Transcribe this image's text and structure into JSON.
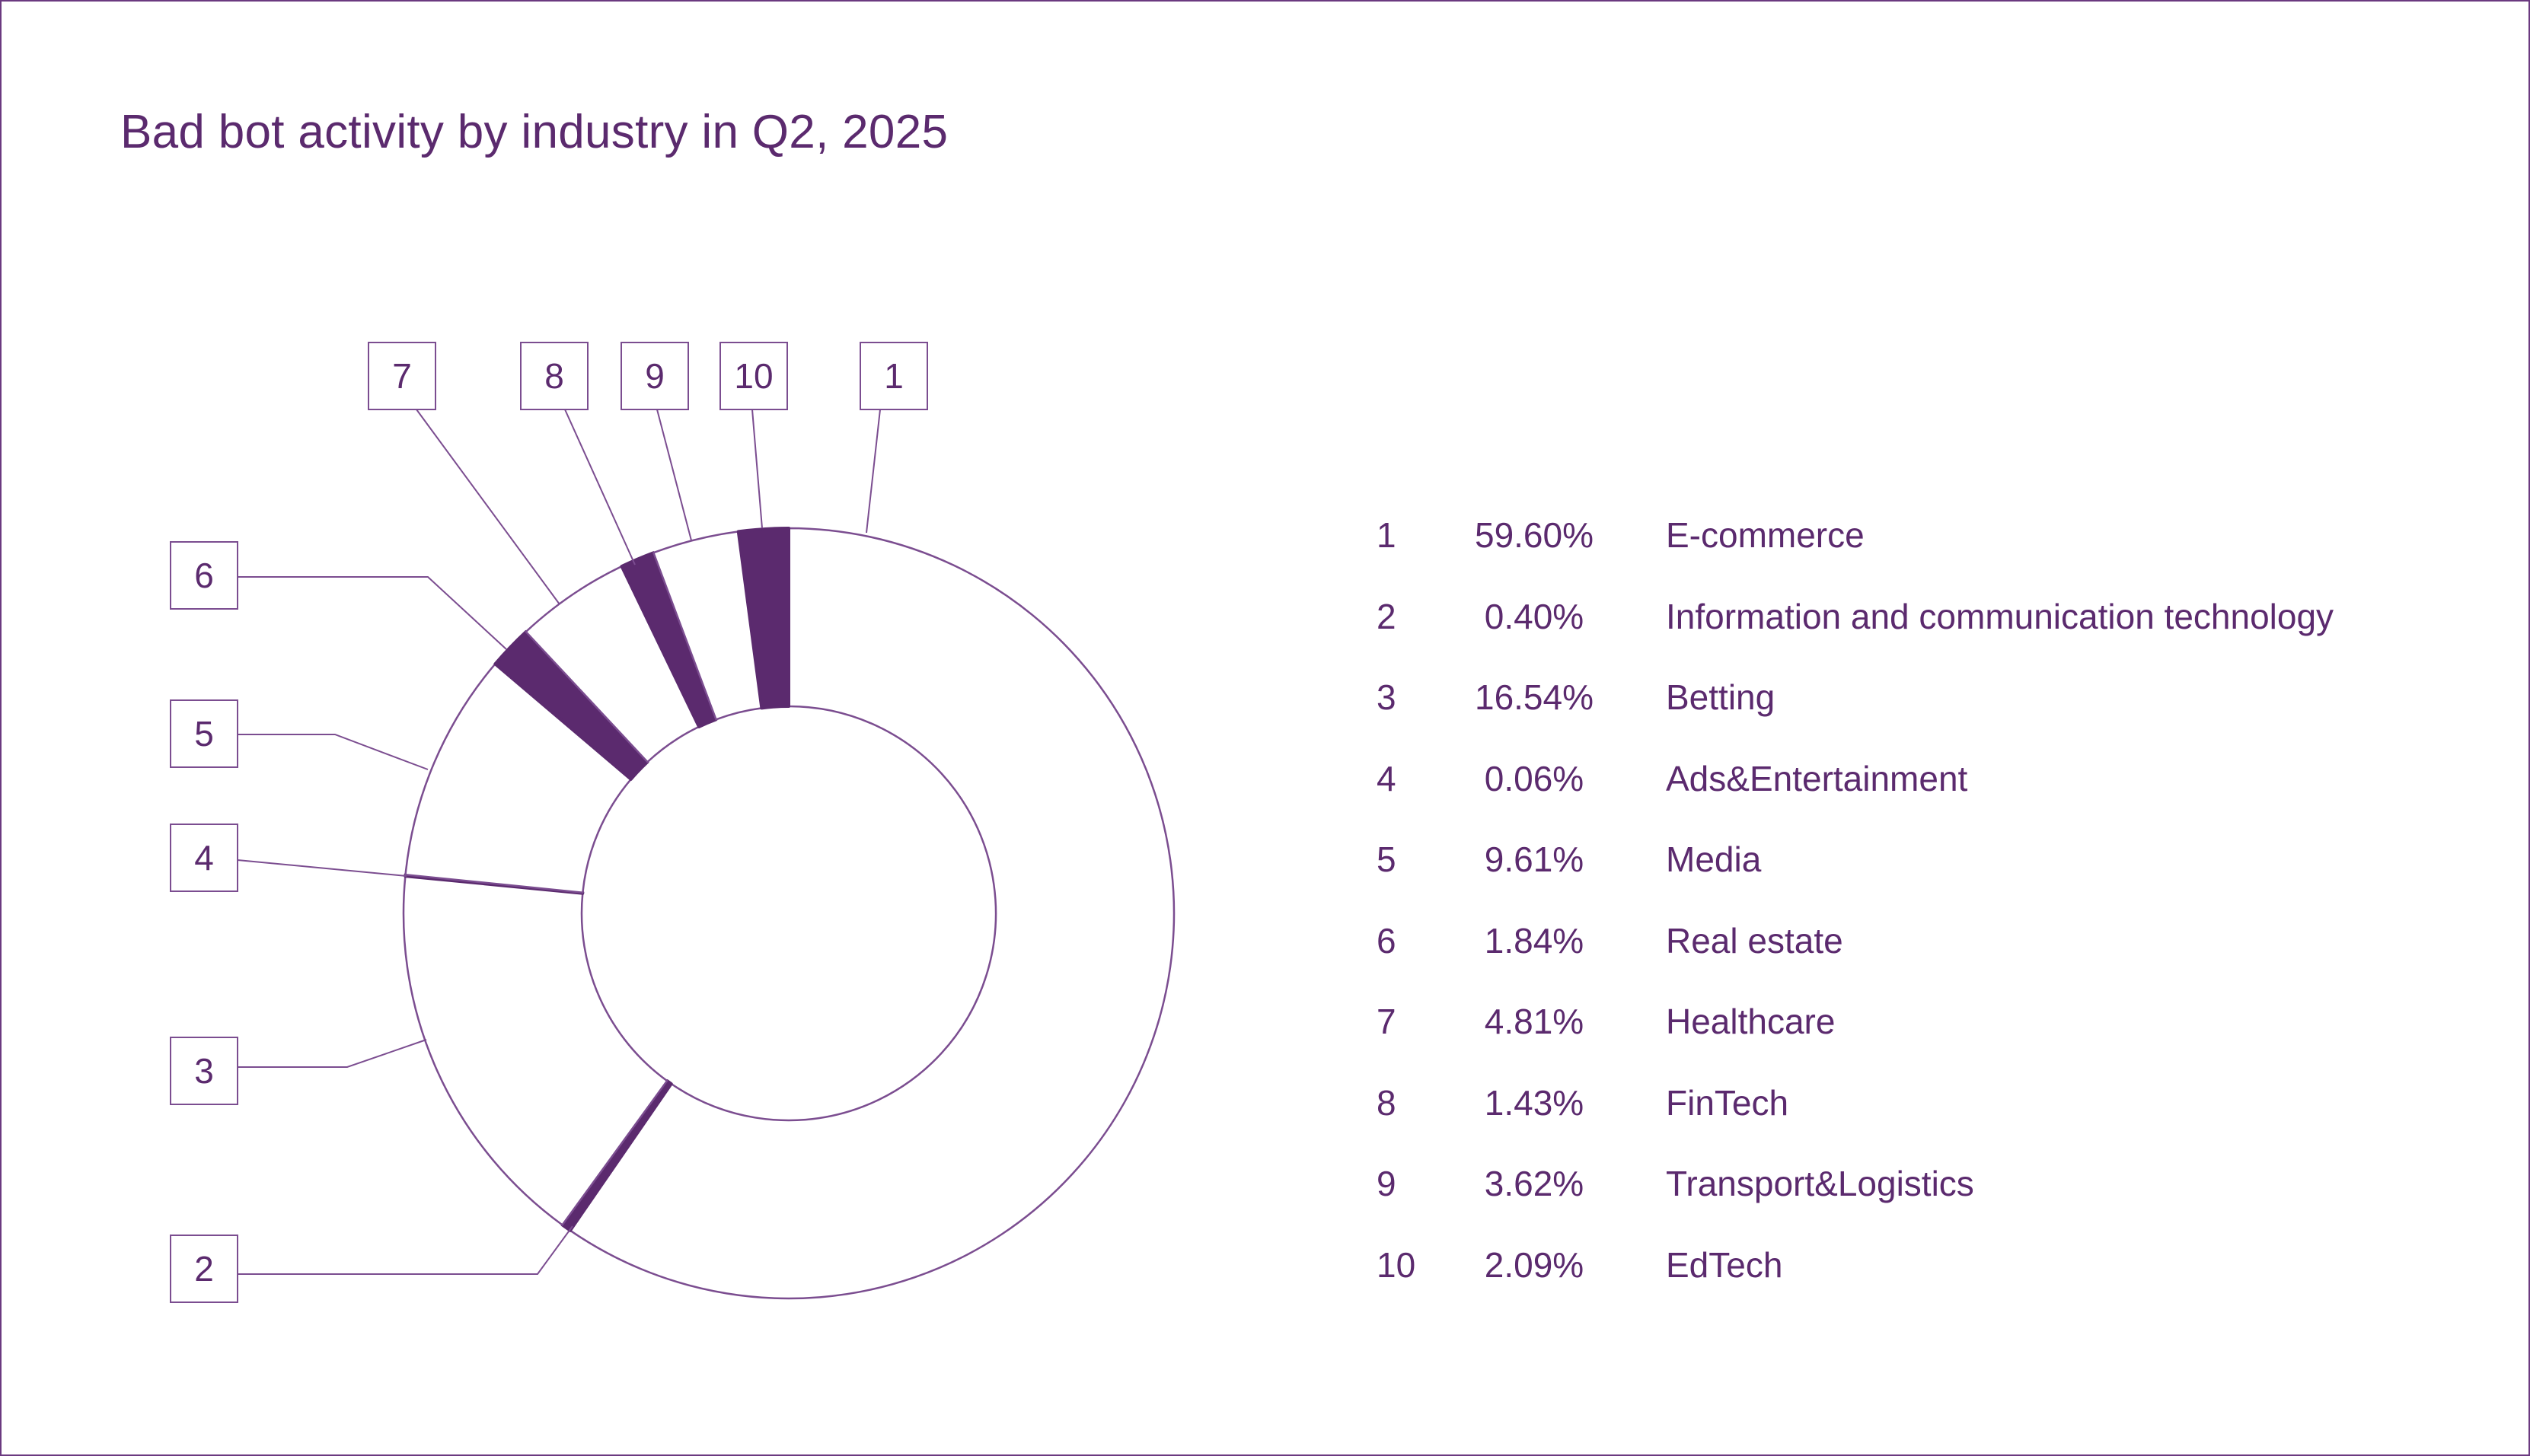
{
  "title": "Bad bot activity by industry in Q2, 2025",
  "colors": {
    "accent": "#5b2a6e",
    "line": "#7b4d90",
    "background": "#ffffff"
  },
  "chart_data": {
    "type": "pie",
    "variant": "donut",
    "title": "Bad bot activity by industry in Q2, 2025",
    "legend_placement": "right",
    "slices": [
      {
        "id": "1",
        "label": "E-commerce",
        "value": 59.6,
        "value_label": "59.60%",
        "filled": false
      },
      {
        "id": "2",
        "label": "Information and communication technology",
        "value": 0.4,
        "value_label": "0.40%",
        "filled": true
      },
      {
        "id": "3",
        "label": "Betting",
        "value": 16.54,
        "value_label": "16.54%",
        "filled": false
      },
      {
        "id": "4",
        "label": "Ads&Entertainment",
        "value": 0.06,
        "value_label": "0.06%",
        "filled": true
      },
      {
        "id": "5",
        "label": "Media",
        "value": 9.61,
        "value_label": "9.61%",
        "filled": false
      },
      {
        "id": "6",
        "label": "Real estate",
        "value": 1.84,
        "value_label": "1.84%",
        "filled": true
      },
      {
        "id": "7",
        "label": "Healthcare",
        "value": 4.81,
        "value_label": "4.81%",
        "filled": false
      },
      {
        "id": "8",
        "label": "FinTech",
        "value": 1.43,
        "value_label": "1.43%",
        "filled": true
      },
      {
        "id": "9",
        "label": "Transport&Logistics",
        "value": 3.62,
        "value_label": "3.62%",
        "filled": false
      },
      {
        "id": "10",
        "label": "EdTech",
        "value": 2.09,
        "value_label": "2.09%",
        "filled": true
      }
    ]
  }
}
